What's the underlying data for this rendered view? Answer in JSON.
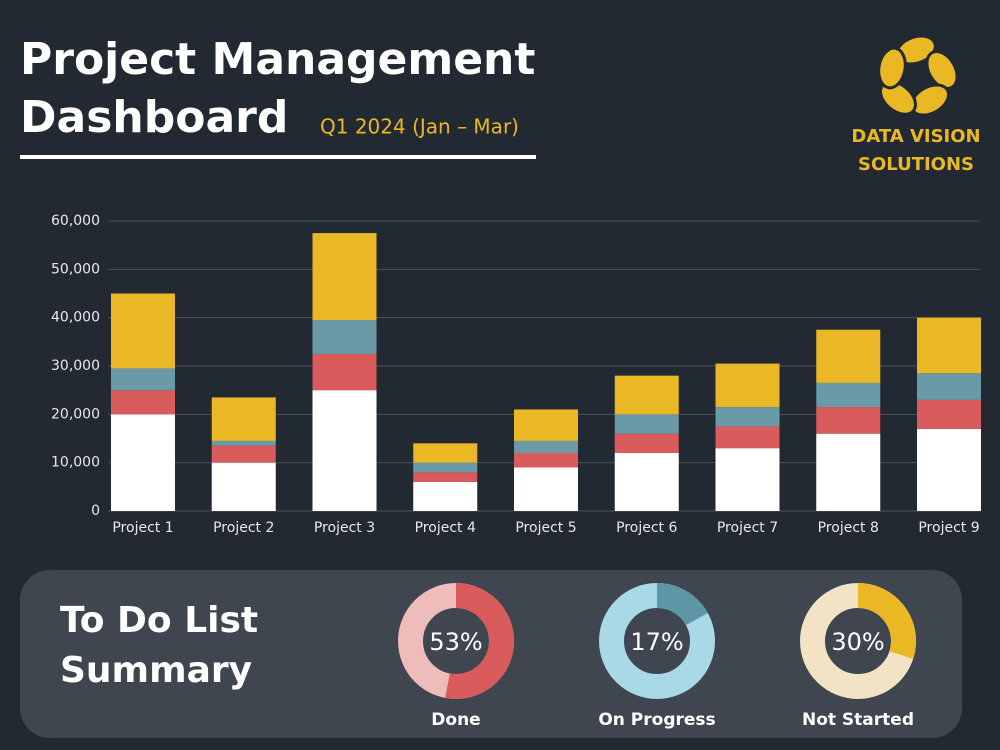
{
  "header": {
    "title": [
      "Project Management",
      "Dashboard"
    ],
    "subtitle": "Q1 2024 (Jan – Mar)",
    "brand": [
      "DATA VISION",
      "SOLUTIONS"
    ]
  },
  "summary": {
    "title": [
      "To Do List",
      "Summary"
    ]
  },
  "chart_data": [
    {
      "type": "stacked-bar",
      "categories": [
        "Project 1",
        "Project 2",
        "Project 3",
        "Project 4",
        "Project 5",
        "Project 6",
        "Project 7",
        "Project 8",
        "Project 9"
      ],
      "series": [
        {
          "color": "#ffffff",
          "values": [
            20000,
            10000,
            25000,
            6000,
            9000,
            12000,
            13000,
            16000,
            17000
          ]
        },
        {
          "color": "#d95b5b",
          "values": [
            5000,
            3500,
            7500,
            2000,
            3000,
            4000,
            4500,
            5500,
            6000
          ]
        },
        {
          "color": "#6a9aa8",
          "values": [
            4500,
            1000,
            7000,
            2000,
            2500,
            4000,
            4000,
            5000,
            5500
          ]
        },
        {
          "color": "#e9b824",
          "values": [
            15500,
            9000,
            18000,
            4000,
            6500,
            8000,
            9000,
            11000,
            11500
          ]
        }
      ],
      "ylim": [
        0,
        60000
      ],
      "yticks": [
        0,
        {
          "value": 10000,
          "label": "10,000"
        },
        {
          "value": 20000,
          "label": "20,000"
        },
        {
          "value": 30000,
          "label": "30,000"
        },
        {
          "value": 40000,
          "label": "40,000"
        },
        {
          "value": 50000,
          "label": "50,000"
        },
        {
          "value": 60000,
          "label": "60,000"
        }
      ],
      "grid": true
    },
    {
      "type": "donut",
      "title": "Done",
      "values": [
        53
      ],
      "value_labels": [
        "53%"
      ],
      "color": "#d95b5b",
      "track_color": "#efbcbc"
    },
    {
      "type": "donut",
      "title": "On Progress",
      "values": [
        17
      ],
      "value_labels": [
        "17%"
      ],
      "color": "#5f96a5",
      "track_color": "#a9d8e6"
    },
    {
      "type": "donut",
      "title": "Not Started",
      "values": [
        30
      ],
      "value_labels": [
        "30%"
      ],
      "color": "#e9b824",
      "track_color": "#f1e3c3"
    }
  ]
}
